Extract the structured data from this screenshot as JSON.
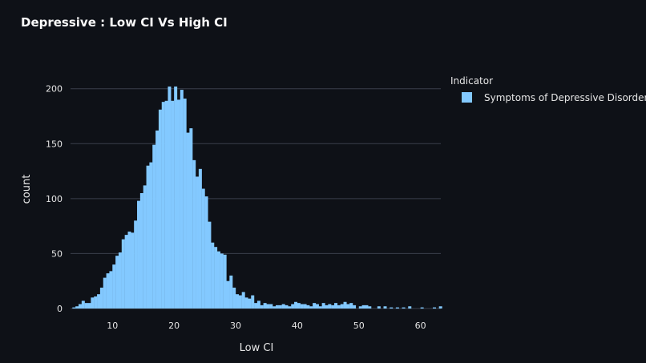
{
  "colors": {
    "background": "#0e1117",
    "bar": "#83c9ff",
    "grid": "#3a3f4b",
    "text": "#e6e6e6"
  },
  "chart_data": {
    "type": "bar",
    "title": "Depressive : Low CI Vs High CI",
    "xlabel": "Low CI",
    "ylabel": "count",
    "xlim": [
      3.2,
      63.3
    ],
    "ylim": [
      0,
      210
    ],
    "x_ticks": [
      10,
      20,
      30,
      40,
      50,
      60
    ],
    "y_ticks": [
      0,
      50,
      100,
      150,
      200
    ],
    "grid": true,
    "legend": {
      "title": "Indicator",
      "placement": "right-top",
      "entries": [
        "Symptoms of Depressive Disorder"
      ]
    },
    "bin_width": 0.5,
    "series": [
      {
        "name": "Symptoms of Depressive Disorder",
        "color": "#83c9ff",
        "bins": [
          [
            3.5,
            1
          ],
          [
            4,
            2
          ],
          [
            4.5,
            4
          ],
          [
            5,
            7
          ],
          [
            5.5,
            5
          ],
          [
            6,
            5
          ],
          [
            6.5,
            10
          ],
          [
            7,
            11
          ],
          [
            7.5,
            13
          ],
          [
            8,
            19
          ],
          [
            8.5,
            28
          ],
          [
            9,
            32
          ],
          [
            9.5,
            34
          ],
          [
            10,
            40
          ],
          [
            10.5,
            48
          ],
          [
            11,
            51
          ],
          [
            11.5,
            63
          ],
          [
            12,
            67
          ],
          [
            12.5,
            70
          ],
          [
            13,
            69
          ],
          [
            13.5,
            80
          ],
          [
            14,
            98
          ],
          [
            14.5,
            105
          ],
          [
            15,
            112
          ],
          [
            15.5,
            130
          ],
          [
            16,
            133
          ],
          [
            16.5,
            149
          ],
          [
            17,
            162
          ],
          [
            17.5,
            181
          ],
          [
            18,
            188
          ],
          [
            18.5,
            189
          ],
          [
            19,
            202
          ],
          [
            19.5,
            189
          ],
          [
            20,
            202
          ],
          [
            20.5,
            190
          ],
          [
            21,
            199
          ],
          [
            21.5,
            191
          ],
          [
            22,
            160
          ],
          [
            22.5,
            164
          ],
          [
            23,
            135
          ],
          [
            23.5,
            120
          ],
          [
            24,
            127
          ],
          [
            24.5,
            109
          ],
          [
            25,
            102
          ],
          [
            25.5,
            79
          ],
          [
            26,
            60
          ],
          [
            26.5,
            56
          ],
          [
            27,
            52
          ],
          [
            27.5,
            50
          ],
          [
            28,
            49
          ],
          [
            28.5,
            25
          ],
          [
            29,
            30
          ],
          [
            29.5,
            19
          ],
          [
            30,
            13
          ],
          [
            30.5,
            12
          ],
          [
            31,
            15
          ],
          [
            31.5,
            10
          ],
          [
            32,
            9
          ],
          [
            32.5,
            12
          ],
          [
            33,
            5
          ],
          [
            33.5,
            7
          ],
          [
            34,
            3
          ],
          [
            34.5,
            5
          ],
          [
            35,
            4
          ],
          [
            35.5,
            4
          ],
          [
            36,
            2
          ],
          [
            36.5,
            3
          ],
          [
            37,
            3
          ],
          [
            37.5,
            4
          ],
          [
            38,
            3
          ],
          [
            38.5,
            2
          ],
          [
            39,
            4
          ],
          [
            39.5,
            6
          ],
          [
            40,
            5
          ],
          [
            40.5,
            4
          ],
          [
            41,
            4
          ],
          [
            41.5,
            3
          ],
          [
            42,
            2
          ],
          [
            42.5,
            5
          ],
          [
            43,
            4
          ],
          [
            43.5,
            2
          ],
          [
            44,
            5
          ],
          [
            44.5,
            3
          ],
          [
            45,
            4
          ],
          [
            45.5,
            3
          ],
          [
            46,
            5
          ],
          [
            46.5,
            3
          ],
          [
            47,
            4
          ],
          [
            47.5,
            6
          ],
          [
            48,
            4
          ],
          [
            48.5,
            5
          ],
          [
            49,
            3
          ],
          [
            50,
            2
          ],
          [
            50.5,
            3
          ],
          [
            51,
            3
          ],
          [
            51.5,
            2
          ],
          [
            53,
            2
          ],
          [
            54,
            2
          ],
          [
            55,
            1
          ],
          [
            56,
            1
          ],
          [
            57,
            1
          ],
          [
            58,
            2
          ],
          [
            60,
            1
          ],
          [
            62,
            1
          ],
          [
            63,
            2
          ]
        ]
      }
    ]
  }
}
